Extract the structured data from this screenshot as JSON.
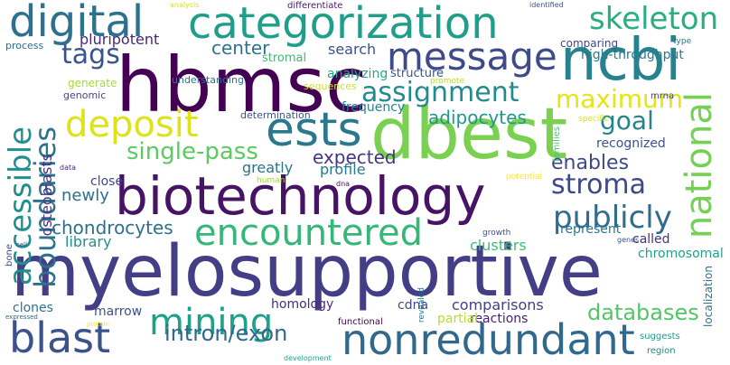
{
  "words": [
    {
      "text": "myelosupportive",
      "color": "#433e85"
    },
    {
      "text": "biotechnology",
      "color": "#471365"
    },
    {
      "text": "hbmsc",
      "color": "#440154"
    },
    {
      "text": "dbest",
      "color": "#7ad151"
    },
    {
      "text": "categorization",
      "color": "#1f9e89"
    },
    {
      "text": "ncbi",
      "color": "#26828e"
    },
    {
      "text": "nonredundant",
      "color": "#31688e"
    },
    {
      "text": "digital",
      "color": "#2c728e"
    },
    {
      "text": "ests",
      "color": "#2a788e"
    },
    {
      "text": "message",
      "color": "#3e4a89"
    },
    {
      "text": "deposit",
      "color": "#dde318"
    },
    {
      "text": "encountered",
      "color": "#35b779"
    },
    {
      "text": "blast",
      "color": "#3b528b"
    },
    {
      "text": "mining",
      "color": "#1fa088"
    },
    {
      "text": "national",
      "color": "#75d054"
    },
    {
      "text": "skeleton",
      "color": "#29af7f"
    },
    {
      "text": "accessible",
      "color": "#218f8d"
    },
    {
      "text": "boundaries",
      "color": "#2d718e"
    },
    {
      "text": "assignment",
      "color": "#238a8d"
    },
    {
      "text": "publicly",
      "color": "#2f6c8e"
    },
    {
      "text": "stroma",
      "color": "#3f4889"
    },
    {
      "text": "maximum",
      "color": "#e5e419"
    },
    {
      "text": "goal",
      "color": "#25838e"
    },
    {
      "text": "tags",
      "color": "#3a548c"
    },
    {
      "text": "single-pass",
      "color": "#5ec962"
    },
    {
      "text": "intron/exon",
      "color": "#31688e"
    },
    {
      "text": "databases",
      "color": "#54c568"
    },
    {
      "text": "chondrocytes",
      "color": "#2d708e"
    },
    {
      "text": "adipocytes",
      "color": "#1f988b"
    },
    {
      "text": "enables",
      "color": "#3e4989"
    },
    {
      "text": "expected",
      "color": "#453781"
    },
    {
      "text": "center",
      "color": "#2c738e"
    },
    {
      "text": "pluripotent",
      "color": "#482878"
    },
    {
      "text": "search",
      "color": "#3b528b"
    },
    {
      "text": "high-throughput",
      "color": "#2a788e"
    },
    {
      "text": "analyzing",
      "color": "#22a884"
    },
    {
      "text": "osteoblasts",
      "color": "#46337f"
    },
    {
      "text": "library",
      "color": "#21918c"
    },
    {
      "text": "clusters",
      "color": "#3fbc73"
    },
    {
      "text": "greatly",
      "color": "#2c728e"
    },
    {
      "text": "profile",
      "color": "#29798e"
    },
    {
      "text": "newly",
      "color": "#2d708e"
    },
    {
      "text": "recognized",
      "color": "#3b528b"
    },
    {
      "text": "represent",
      "color": "#2a788e"
    },
    {
      "text": "called",
      "color": "#46327e"
    },
    {
      "text": "chromosomal",
      "color": "#1fa188"
    },
    {
      "text": "comparisons",
      "color": "#424086"
    },
    {
      "text": "reactions",
      "color": "#482173"
    },
    {
      "text": "partial",
      "color": "#b5de2b"
    },
    {
      "text": "homology",
      "color": "#472c7a"
    },
    {
      "text": "cdna",
      "color": "#3e4a89"
    },
    {
      "text": "clones",
      "color": "#2d718e"
    },
    {
      "text": "marrow",
      "color": "#3b518b"
    },
    {
      "text": "frequency",
      "color": "#27808e"
    },
    {
      "text": "structure",
      "color": "#3a548c"
    },
    {
      "text": "stromal",
      "color": "#3dbc74"
    },
    {
      "text": "understanding",
      "color": "#2b758e"
    },
    {
      "text": "comparing",
      "color": "#3e4989"
    },
    {
      "text": "generate",
      "color": "#a5db36"
    },
    {
      "text": "sequences",
      "color": "#d2e21b"
    },
    {
      "text": "genomic",
      "color": "#404688"
    },
    {
      "text": "determination",
      "color": "#3b528b"
    },
    {
      "text": "close",
      "color": "#404588"
    },
    {
      "text": "process",
      "color": "#2e6f8e"
    },
    {
      "text": "differentiate",
      "color": "#48186a"
    },
    {
      "text": "analysis",
      "color": "#d8e219"
    },
    {
      "text": "identified",
      "color": "#3b528b"
    },
    {
      "text": "type",
      "color": "#2c728e"
    },
    {
      "text": "mrna",
      "color": "#3f4788"
    },
    {
      "text": "specific",
      "color": "#dde318"
    },
    {
      "text": "families",
      "color": "#4ec36b"
    },
    {
      "text": "potential",
      "color": "#fde725"
    },
    {
      "text": "human",
      "color": "#a8db34"
    },
    {
      "text": "dna",
      "color": "#471063"
    },
    {
      "text": "data",
      "color": "#482576"
    },
    {
      "text": "growth",
      "color": "#3a538b"
    },
    {
      "text": "genes",
      "color": "#3b528b"
    },
    {
      "text": "revealed",
      "color": "#2c738e"
    },
    {
      "text": "promote",
      "color": "#b8de29"
    },
    {
      "text": "functional",
      "color": "#440154"
    },
    {
      "text": "suggests",
      "color": "#1e9c89"
    },
    {
      "text": "region",
      "color": "#24878e"
    },
    {
      "text": "localization",
      "color": "#2a768e"
    },
    {
      "text": "bone",
      "color": "#3d4d8a"
    },
    {
      "text": "cell",
      "color": "#39568c"
    },
    {
      "text": "expressed",
      "color": "#31688e"
    },
    {
      "text": "protein",
      "color": "#fde725"
    },
    {
      "text": "development",
      "color": "#21a685"
    }
  ]
}
